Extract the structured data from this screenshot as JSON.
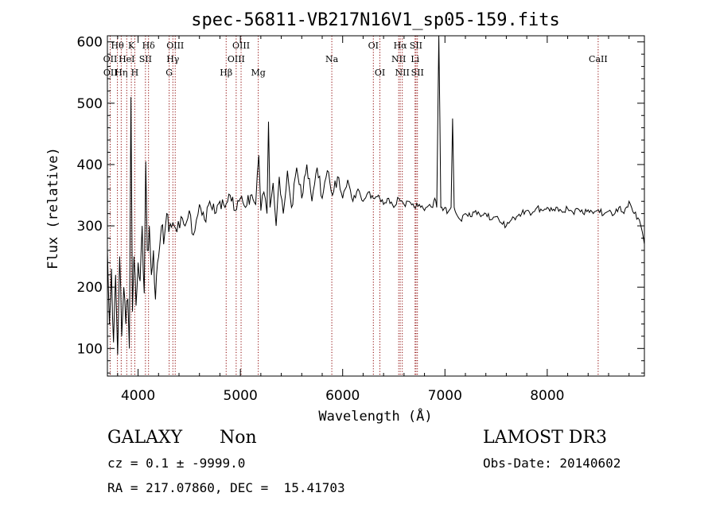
{
  "chart_data": {
    "type": "line",
    "title": "spec-56811-VB217N16V1_sp05-159.fits",
    "xlabel": "Wavelength (Å)",
    "ylabel": "Flux (relative)",
    "xlim": [
      3700,
      8950
    ],
    "ylim": [
      55,
      610
    ],
    "xticks": [
      4000,
      5000,
      6000,
      7000,
      8000
    ],
    "yticks": [
      100,
      200,
      300,
      400,
      500,
      600
    ],
    "spectrum_points": [
      [
        3700,
        260
      ],
      [
        3720,
        140
      ],
      [
        3740,
        230
      ],
      [
        3760,
        110
      ],
      [
        3780,
        220
      ],
      [
        3800,
        90
      ],
      [
        3820,
        250
      ],
      [
        3840,
        120
      ],
      [
        3860,
        200
      ],
      [
        3880,
        140
      ],
      [
        3900,
        180
      ],
      [
        3915,
        100
      ],
      [
        3930,
        510
      ],
      [
        3945,
        160
      ],
      [
        3960,
        250
      ],
      [
        3980,
        170
      ],
      [
        4000,
        240
      ],
      [
        4020,
        210
      ],
      [
        4040,
        300
      ],
      [
        4060,
        190
      ],
      [
        4075,
        405
      ],
      [
        4090,
        260
      ],
      [
        4110,
        300
      ],
      [
        4130,
        220
      ],
      [
        4150,
        260
      ],
      [
        4170,
        180
      ],
      [
        4190,
        240
      ],
      [
        4210,
        265
      ],
      [
        4230,
        300
      ],
      [
        4250,
        270
      ],
      [
        4280,
        320
      ],
      [
        4300,
        290
      ],
      [
        4340,
        305
      ],
      [
        4380,
        290
      ],
      [
        4420,
        315
      ],
      [
        4460,
        300
      ],
      [
        4500,
        325
      ],
      [
        4540,
        285
      ],
      [
        4570,
        310
      ],
      [
        4600,
        335
      ],
      [
        4650,
        310
      ],
      [
        4700,
        340
      ],
      [
        4750,
        320
      ],
      [
        4800,
        340
      ],
      [
        4850,
        330
      ],
      [
        4900,
        350
      ],
      [
        4950,
        325
      ],
      [
        5000,
        345
      ],
      [
        5050,
        330
      ],
      [
        5100,
        350
      ],
      [
        5150,
        335
      ],
      [
        5180,
        415
      ],
      [
        5200,
        325
      ],
      [
        5230,
        355
      ],
      [
        5260,
        320
      ],
      [
        5275,
        470
      ],
      [
        5290,
        330
      ],
      [
        5320,
        370
      ],
      [
        5350,
        300
      ],
      [
        5380,
        380
      ],
      [
        5420,
        320
      ],
      [
        5460,
        390
      ],
      [
        5500,
        330
      ],
      [
        5550,
        395
      ],
      [
        5600,
        345
      ],
      [
        5650,
        400
      ],
      [
        5700,
        340
      ],
      [
        5750,
        395
      ],
      [
        5800,
        345
      ],
      [
        5850,
        390
      ],
      [
        5900,
        350
      ],
      [
        5950,
        380
      ],
      [
        6000,
        345
      ],
      [
        6050,
        375
      ],
      [
        6100,
        340
      ],
      [
        6150,
        360
      ],
      [
        6200,
        340
      ],
      [
        6250,
        355
      ],
      [
        6300,
        345
      ],
      [
        6350,
        350
      ],
      [
        6400,
        335
      ],
      [
        6450,
        345
      ],
      [
        6500,
        330
      ],
      [
        6550,
        345
      ],
      [
        6600,
        335
      ],
      [
        6650,
        340
      ],
      [
        6700,
        330
      ],
      [
        6750,
        335
      ],
      [
        6800,
        325
      ],
      [
        6850,
        335
      ],
      [
        6880,
        330
      ],
      [
        6900,
        345
      ],
      [
        6920,
        330
      ],
      [
        6940,
        615
      ],
      [
        6960,
        330
      ],
      [
        6980,
        325
      ],
      [
        7000,
        330
      ],
      [
        7020,
        320
      ],
      [
        7040,
        325
      ],
      [
        7060,
        330
      ],
      [
        7075,
        475
      ],
      [
        7090,
        330
      ],
      [
        7110,
        320
      ],
      [
        7150,
        310
      ],
      [
        7200,
        320
      ],
      [
        7250,
        315
      ],
      [
        7300,
        325
      ],
      [
        7350,
        315
      ],
      [
        7400,
        320
      ],
      [
        7450,
        310
      ],
      [
        7500,
        315
      ],
      [
        7550,
        305
      ],
      [
        7600,
        300
      ],
      [
        7650,
        310
      ],
      [
        7700,
        315
      ],
      [
        7750,
        320
      ],
      [
        7800,
        325
      ],
      [
        7850,
        320
      ],
      [
        7900,
        330
      ],
      [
        7950,
        325
      ],
      [
        8000,
        330
      ],
      [
        8050,
        325
      ],
      [
        8100,
        330
      ],
      [
        8150,
        322
      ],
      [
        8200,
        328
      ],
      [
        8250,
        322
      ],
      [
        8300,
        328
      ],
      [
        8350,
        320
      ],
      [
        8400,
        326
      ],
      [
        8450,
        320
      ],
      [
        8500,
        326
      ],
      [
        8550,
        318
      ],
      [
        8600,
        324
      ],
      [
        8650,
        318
      ],
      [
        8700,
        330
      ],
      [
        8750,
        320
      ],
      [
        8800,
        340
      ],
      [
        8850,
        320
      ],
      [
        8900,
        310
      ],
      [
        8930,
        290
      ],
      [
        8950,
        270
      ]
    ],
    "annotations": [
      {
        "label": "OII",
        "x": 3727,
        "row": 2
      },
      {
        "label": "OII",
        "x": 3729,
        "row": 3
      },
      {
        "label": "Hθ",
        "x": 3798,
        "row": 1
      },
      {
        "label": "Hη",
        "x": 3835,
        "row": 3
      },
      {
        "label": "HeI",
        "x": 3889,
        "row": 2
      },
      {
        "label": "K",
        "x": 3934,
        "row": 1
      },
      {
        "label": "H",
        "x": 3968,
        "row": 3
      },
      {
        "label": "Hδ",
        "x": 4102,
        "row": 1
      },
      {
        "label": "SII",
        "x": 4072,
        "row": 2
      },
      {
        "label": "OIII",
        "x": 4363,
        "row": 1
      },
      {
        "label": "Hγ",
        "x": 4340,
        "row": 2
      },
      {
        "label": "G",
        "x": 4304,
        "row": 3
      },
      {
        "label": "Hβ",
        "x": 4861,
        "row": 3
      },
      {
        "label": "OIII",
        "x": 4959,
        "row": 2
      },
      {
        "label": "OIII",
        "x": 5007,
        "row": 1
      },
      {
        "label": "Mg",
        "x": 5175,
        "row": 3
      },
      {
        "label": "Na",
        "x": 5894,
        "row": 2
      },
      {
        "label": "OI",
        "x": 6300,
        "row": 1
      },
      {
        "label": "OI",
        "x": 6364,
        "row": 3
      },
      {
        "label": "NII",
        "x": 6548,
        "row": 2
      },
      {
        "label": "Hα",
        "x": 6563,
        "row": 1
      },
      {
        "label": "NII",
        "x": 6583,
        "row": 3
      },
      {
        "label": "SII",
        "x": 6717,
        "row": 1
      },
      {
        "label": "Li",
        "x": 6708,
        "row": 2
      },
      {
        "label": "SII",
        "x": 6731,
        "row": 3
      },
      {
        "label": "CaII",
        "x": 8498,
        "row": 2
      }
    ],
    "line_markers_x": [
      3727,
      3798,
      3835,
      3889,
      3934,
      3968,
      4072,
      4102,
      4304,
      4340,
      4363,
      4861,
      4959,
      5007,
      5175,
      5894,
      6300,
      6364,
      6548,
      6563,
      6583,
      6708,
      6717,
      6731,
      8498
    ]
  },
  "footer": {
    "object_class": "GALAXY",
    "subclass": "Non",
    "survey": "LAMOST DR3",
    "cz_line": "cz = 0.1 ± -9999.0",
    "obs_date": "Obs-Date: 20140602",
    "coords": "RA = 217.07860, DEC =  15.41703"
  },
  "colors": {
    "marker": "#8b0000",
    "trace": "#000000"
  }
}
